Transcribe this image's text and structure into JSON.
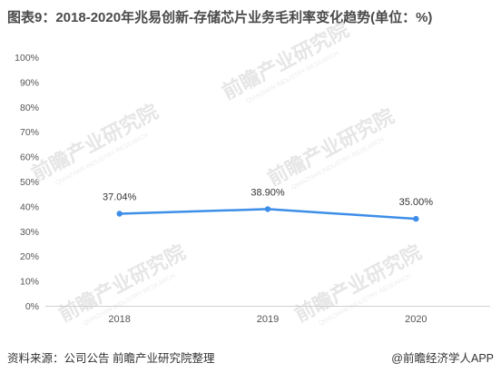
{
  "header": {
    "title": "图表9：2018-2020年兆易创新-存储芯片业务毛利率变化趋势(单位：%)"
  },
  "footer": {
    "source": "资料来源：公司公告 前瞻产业研究院整理",
    "brand": "@前瞻经济学人APP"
  },
  "watermark": {
    "text": "前瞻产业研究院",
    "sub": "QIANZHAN INDUSTRY RESEARCH"
  },
  "chart_data": {
    "type": "line",
    "categories": [
      "2018",
      "2019",
      "2020"
    ],
    "series": [
      {
        "values": [
          37.04,
          38.9,
          35.0
        ],
        "labels": [
          "37.04%",
          "38.90%",
          "35.00%"
        ],
        "color": "#3d8ee8"
      }
    ],
    "ylim": [
      0,
      100
    ],
    "yticks": [
      0,
      10,
      20,
      30,
      40,
      50,
      60,
      70,
      80,
      90,
      100
    ],
    "ytick_labels": [
      "0%",
      "10%",
      "20%",
      "30%",
      "40%",
      "50%",
      "60%",
      "70%",
      "80%",
      "90%",
      "100%"
    ],
    "grid": false,
    "legend": "none"
  }
}
